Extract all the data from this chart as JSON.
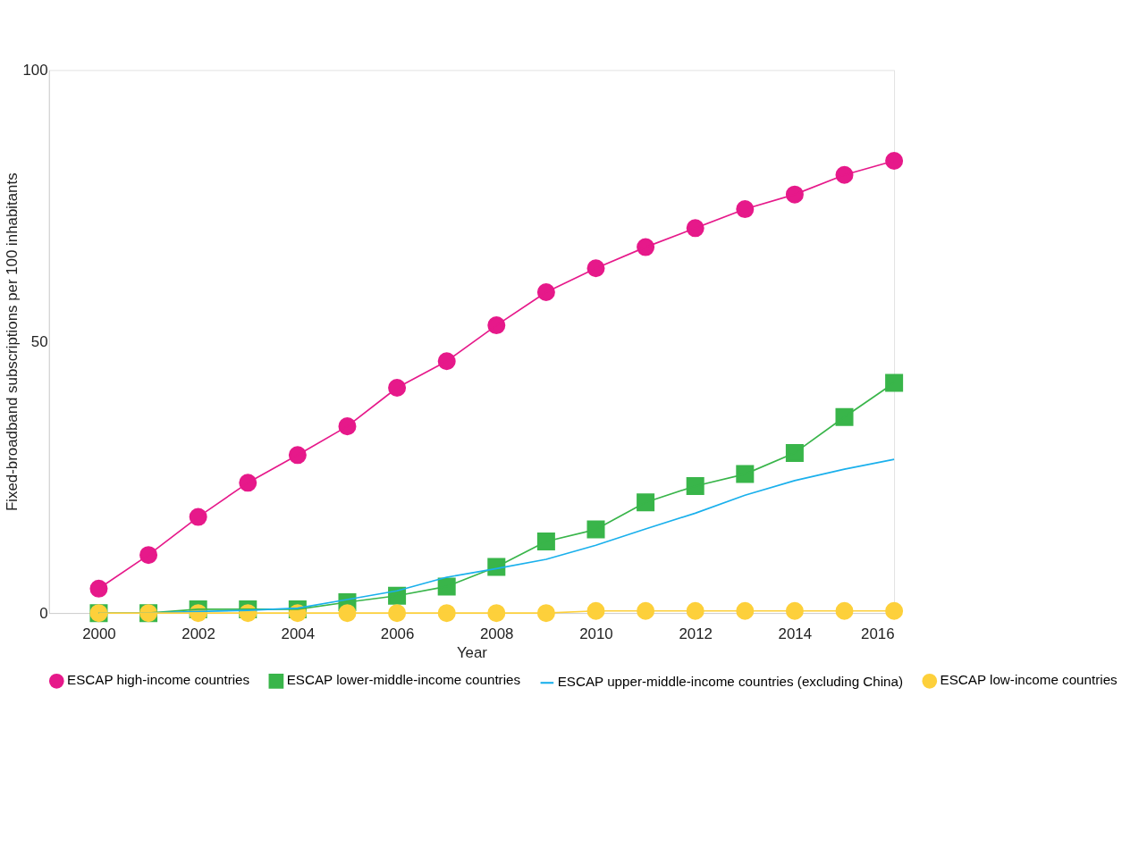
{
  "chart_data": {
    "type": "line",
    "xlabel": "Year",
    "ylabel": "Fixed-broadband subscriptions per 100 inhabitants",
    "x": [
      2000,
      2001,
      2002,
      2003,
      2004,
      2005,
      2006,
      2007,
      2008,
      2009,
      2010,
      2011,
      2012,
      2013,
      2014,
      2015,
      2016
    ],
    "xlim": [
      1999,
      2016
    ],
    "xticks": [
      2000,
      2002,
      2004,
      2006,
      2008,
      2010,
      2012,
      2014,
      2016
    ],
    "ylim": [
      0,
      100
    ],
    "yticks": [
      0,
      50,
      100
    ],
    "grid": false,
    "legend": "bottom",
    "series": [
      {
        "name": "ESCAP high-income countries",
        "color": "#e6198a",
        "marker": "circle",
        "values": [
          4.5,
          10.7,
          17.7,
          24.0,
          29.1,
          34.4,
          41.5,
          46.4,
          53.0,
          59.1,
          63.5,
          67.4,
          70.9,
          74.4,
          77.1,
          80.7,
          83.3
        ]
      },
      {
        "name": "ESCAP lower-middle-income countries",
        "color": "#39b54a",
        "marker": "square",
        "values": [
          0,
          0,
          0.7,
          0.7,
          0.7,
          2.0,
          3.2,
          4.9,
          8.5,
          13.2,
          15.4,
          20.4,
          23.4,
          25.6,
          29.5,
          36.1,
          42.4
        ]
      },
      {
        "name": "ESCAP upper-middle-income countries (excluding China)",
        "color": "#1ab0ec",
        "marker": "none",
        "values": [
          0,
          0,
          0.3,
          0.5,
          0.9,
          2.5,
          4.1,
          6.6,
          8.2,
          9.9,
          12.5,
          15.5,
          18.4,
          21.7,
          24.4,
          26.5,
          28.3
        ]
      },
      {
        "name": "ESCAP low-income countries",
        "color": "#fdd03b",
        "marker": "circle",
        "values": [
          0,
          0,
          0,
          0,
          0,
          0,
          0,
          0,
          0,
          0,
          0.4,
          0.4,
          0.4,
          0.4,
          0.4,
          0.4,
          0.4
        ]
      }
    ]
  }
}
